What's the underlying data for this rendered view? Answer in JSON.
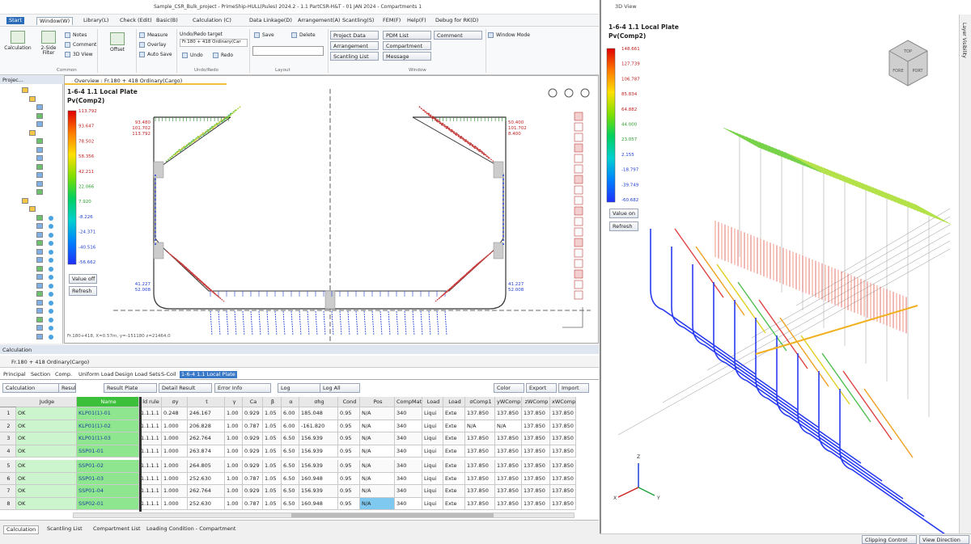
{
  "title_bar": {
    "title": "Sample_CSR_Bulk_project - PrimeShip-HULL(Rules) 2024.2 - 1.1 PartCSR-H&T - 01 JAN 2024 - Compartments 1",
    "view3d_title": "3D View"
  },
  "ribbon_tabs": [
    "Start",
    "Window(W)",
    "Library(L)",
    "Check (Edit)",
    "Basic(B)",
    "Calculation (C)",
    "Data Linkage(D)",
    "Arrangement(A)",
    "Scantling(S)",
    "FEM(F)",
    "Help(F)",
    "Debug for RK(D)"
  ],
  "ribbon": {
    "calculation": "Calculation",
    "two_side": "2-Side Filter",
    "notes": "Notes",
    "comment": "Comment",
    "view_3d": "3D View",
    "offset": "Offset",
    "measure": "Measure",
    "overlay": "Overlay",
    "auto_save": "Auto Save",
    "undo_redo_target": "Undo/Redo target",
    "undo_target_value": "Fr.180 + 418 Ordinary(Car",
    "undo": "Undo",
    "redo": "Redo",
    "save": "Save",
    "delete": "Delete",
    "project_data": "Project Data",
    "pdm_list": "PDM List",
    "comment_window": "Comment",
    "window_mode": "Window Mode",
    "arrangement": "Arrangement",
    "compartment": "Compartment",
    "scantling_list": "Scantling List",
    "message": "Message",
    "groups": [
      "Common",
      "Undo/Redo",
      "Layout",
      "Window"
    ]
  },
  "project_panel": {
    "title": "Projec..."
  },
  "overview": {
    "tab": "Overview : Fr.180 + 418 Ordinary(Cargo)",
    "plate_title": "1-6-4 1.1 Local Plate",
    "quantity": "Pv(Comp2)",
    "legend": [
      "113.792",
      "93.647",
      "78.502",
      "58.356",
      "42.211",
      "22.066",
      "7.920",
      "-8.226",
      "-24.371",
      "-40.516",
      "-56.662"
    ],
    "value_button": "Value off",
    "refresh": "Refresh",
    "labels_left_top": [
      "93.480",
      "101.702",
      "113.792"
    ],
    "labels_right_top": [
      "50.400",
      "101.702",
      "8.400"
    ],
    "labels_left_bottom": [
      "41.227",
      "52.008"
    ],
    "labels_right_bottom": [
      "41.227",
      "52.008"
    ],
    "status": "Fr.180+418, X=0.57m, y=-151180  z=21464.0"
  },
  "calculation": {
    "title": "Calculation",
    "frame": "Fr.180 + 418 Ordinary(Cargo)",
    "tabs": [
      "Principal",
      "Section",
      "Comp.",
      "Uniform Load",
      "Design Load Sets",
      "S-Coil",
      "1-6-4 1.1 Local Plate"
    ],
    "toolbar": [
      "Calculation",
      "Result Plate",
      "Result Plate",
      "Detail Result",
      "Error Info",
      "Log",
      "Log All",
      "Color",
      "Export",
      "Import"
    ],
    "headers": [
      "Judge",
      "Name",
      "ld rule",
      "σy",
      "t",
      "γ",
      "Ca",
      "β",
      "α",
      "σhg",
      "Cond",
      "Pos",
      "CompMat",
      "Load",
      "Load",
      "σComp1",
      "yWComp1",
      "zWComp",
      "xWComp"
    ],
    "rows": [
      [
        "1",
        "OK",
        "KLP01(1)-01",
        "1.1.1.1",
        "0.248",
        "246.167",
        "1.00",
        "0.929",
        "1.05",
        "6.00",
        "185.048",
        "0.95",
        "N/A",
        "340",
        "Liqui",
        "Exte",
        "137.850",
        "137.850",
        "137.850",
        "137.850"
      ],
      [
        "2",
        "OK",
        "KLP01(1)-02",
        "1.1.1.1",
        "1.000",
        "206.828",
        "1.00",
        "0.787",
        "1.05",
        "6.00",
        "-161.820",
        "0.95",
        "N/A",
        "340",
        "Liqui",
        "Exte",
        "N/A",
        "N/A",
        "137.850",
        "137.850"
      ],
      [
        "3",
        "OK",
        "KLP01(1)-03",
        "1.1.1.1",
        "1.000",
        "262.764",
        "1.00",
        "0.929",
        "1.05",
        "6.50",
        "156.939",
        "0.95",
        "N/A",
        "340",
        "Liqui",
        "Exte",
        "137.850",
        "137.850",
        "137.850",
        "137.850"
      ],
      [
        "4",
        "OK",
        "SSP01-01",
        "1.1.1.1",
        "1.000",
        "263.874",
        "1.00",
        "0.929",
        "1.05",
        "6.50",
        "156.939",
        "0.95",
        "N/A",
        "340",
        "Liqui",
        "Exte",
        "137.850",
        "137.850",
        "137.850",
        "137.850"
      ],
      [
        "5",
        "OK",
        "SSP01-02",
        "1.1.1.1",
        "1.000",
        "264.805",
        "1.00",
        "0.929",
        "1.05",
        "6.50",
        "156.939",
        "0.95",
        "N/A",
        "340",
        "Liqui",
        "Exte",
        "137.850",
        "137.850",
        "137.850",
        "137.850"
      ],
      [
        "6",
        "OK",
        "SSP01-03",
        "1.1.1.1",
        "1.000",
        "252.630",
        "1.00",
        "0.787",
        "1.05",
        "6.50",
        "160.948",
        "0.95",
        "N/A",
        "340",
        "Liqui",
        "Exte",
        "137.850",
        "137.850",
        "137.850",
        "137.850"
      ],
      [
        "7",
        "OK",
        "SSP01-04",
        "1.1.1.1",
        "1.000",
        "262.764",
        "1.00",
        "0.929",
        "1.05",
        "6.50",
        "156.939",
        "0.95",
        "N/A",
        "340",
        "Liqui",
        "Exte",
        "137.850",
        "137.850",
        "137.850",
        "137.850"
      ],
      [
        "8",
        "OK",
        "SSP02-01",
        "1.1.1.1",
        "1.000",
        "252.630",
        "1.00",
        "0.787",
        "1.05",
        "6.50",
        "160.948",
        "0.95",
        "N/A",
        "340",
        "Liqui",
        "Exte",
        "137.850",
        "137.850",
        "137.850",
        "137.850"
      ]
    ]
  },
  "bottom_tabs": [
    "Calculation",
    "Scantling List",
    "Compartment List",
    "Loading Condition - Compartment"
  ],
  "view3d": {
    "plate_title": "1-6-4 1.1 Local Plate",
    "quantity": "Pv(Comp2)",
    "legend": [
      "148.661",
      "127.739",
      "106.787",
      "85.834",
      "64.882",
      "44.000",
      "23.057",
      "2.155",
      "-18.797",
      "-39.749",
      "-60.682"
    ],
    "value_button": "Value on",
    "refresh": "Refresh",
    "cube_faces": [
      "TOP",
      "FORE",
      "PORT"
    ],
    "axes": [
      "Z",
      "X",
      "Y"
    ],
    "layer_tab": "Layer Visibility",
    "clipping": "Clipping Control",
    "view_direction": "View Direction"
  }
}
